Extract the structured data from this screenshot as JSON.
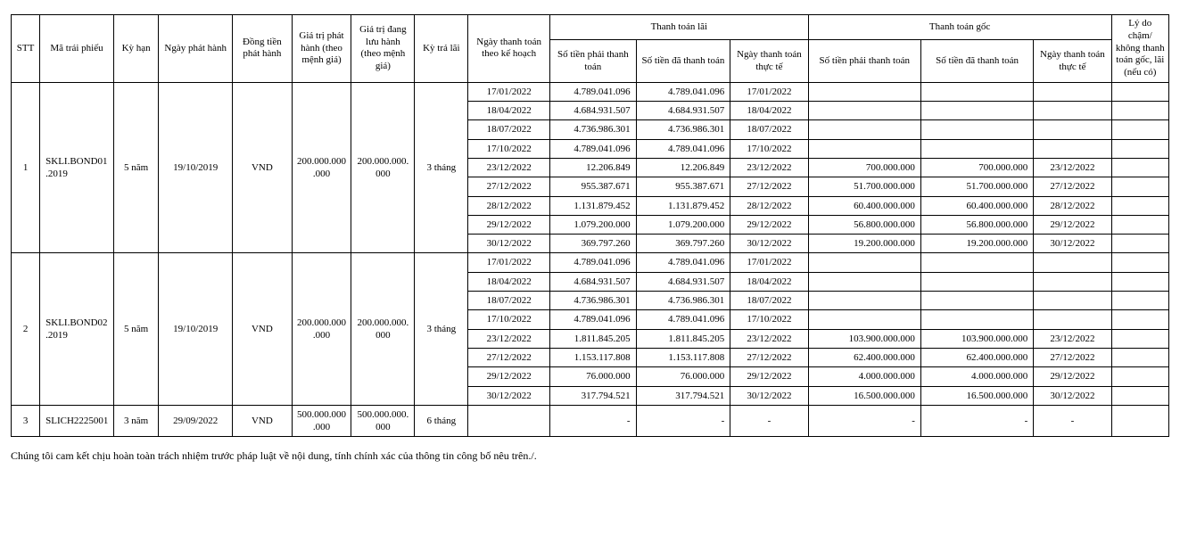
{
  "headers": {
    "stt": "STT",
    "code": "Mã trái phiếu",
    "term": "Kỳ hạn",
    "issue_date": "Ngày phát hành",
    "currency": "Đồng tiền phát hành",
    "face_issue": "Giá trị phát hành (theo mệnh giá)",
    "face_out": "Giá trị đang lưu hành (theo mệnh giá)",
    "int_period": "Kỳ trả lãi",
    "plan_date": "Ngày thanh toán theo kế hoạch",
    "interest_group": "Thanh toán lãi",
    "principal_group": "Thanh toán gốc",
    "amt_due": "Số tiền phải thanh toán",
    "amt_paid": "Số tiền đã thanh toán",
    "actual_date": "Ngày thanh toán thực tế",
    "reason": "Lý do chậm/ không thanh toán gốc, lãi (nếu có)"
  },
  "bonds": [
    {
      "stt": "1",
      "code": "SKLI.BOND01.2019",
      "term": "5 năm",
      "issue_date": "19/10/2019",
      "currency": "VND",
      "face_issue": "200.000.000.000",
      "face_out": "200.000.000.000",
      "int_period": "3 tháng",
      "rows": [
        {
          "plan": "17/01/2022",
          "i_due": "4.789.041.096",
          "i_paid": "4.789.041.096",
          "i_act": "17/01/2022",
          "p_due": "",
          "p_paid": "",
          "p_act": "",
          "reason": ""
        },
        {
          "plan": "18/04/2022",
          "i_due": "4.684.931.507",
          "i_paid": "4.684.931.507",
          "i_act": "18/04/2022",
          "p_due": "",
          "p_paid": "",
          "p_act": "",
          "reason": ""
        },
        {
          "plan": "18/07/2022",
          "i_due": "4.736.986.301",
          "i_paid": "4.736.986.301",
          "i_act": "18/07/2022",
          "p_due": "",
          "p_paid": "",
          "p_act": "",
          "reason": ""
        },
        {
          "plan": "17/10/2022",
          "i_due": "4.789.041.096",
          "i_paid": "4.789.041.096",
          "i_act": "17/10/2022",
          "p_due": "",
          "p_paid": "",
          "p_act": "",
          "reason": ""
        },
        {
          "plan": "23/12/2022",
          "i_due": "12.206.849",
          "i_paid": "12.206.849",
          "i_act": "23/12/2022",
          "p_due": "700.000.000",
          "p_paid": "700.000.000",
          "p_act": "23/12/2022",
          "reason": ""
        },
        {
          "plan": "27/12/2022",
          "i_due": "955.387.671",
          "i_paid": "955.387.671",
          "i_act": "27/12/2022",
          "p_due": "51.700.000.000",
          "p_paid": "51.700.000.000",
          "p_act": "27/12/2022",
          "reason": ""
        },
        {
          "plan": "28/12/2022",
          "i_due": "1.131.879.452",
          "i_paid": "1.131.879.452",
          "i_act": "28/12/2022",
          "p_due": "60.400.000.000",
          "p_paid": "60.400.000.000",
          "p_act": "28/12/2022",
          "reason": ""
        },
        {
          "plan": "29/12/2022",
          "i_due": "1.079.200.000",
          "i_paid": "1.079.200.000",
          "i_act": "29/12/2022",
          "p_due": "56.800.000.000",
          "p_paid": "56.800.000.000",
          "p_act": "29/12/2022",
          "reason": ""
        },
        {
          "plan": "30/12/2022",
          "i_due": "369.797.260",
          "i_paid": "369.797.260",
          "i_act": "30/12/2022",
          "p_due": "19.200.000.000",
          "p_paid": "19.200.000.000",
          "p_act": "30/12/2022",
          "reason": ""
        }
      ]
    },
    {
      "stt": "2",
      "code": "SKLI.BOND02.2019",
      "term": "5 năm",
      "issue_date": "19/10/2019",
      "currency": "VND",
      "face_issue": "200.000.000.000",
      "face_out": "200.000.000.000",
      "int_period": "3 tháng",
      "rows": [
        {
          "plan": "17/01/2022",
          "i_due": "4.789.041.096",
          "i_paid": "4.789.041.096",
          "i_act": "17/01/2022",
          "p_due": "",
          "p_paid": "",
          "p_act": "",
          "reason": ""
        },
        {
          "plan": "18/04/2022",
          "i_due": "4.684.931.507",
          "i_paid": "4.684.931.507",
          "i_act": "18/04/2022",
          "p_due": "",
          "p_paid": "",
          "p_act": "",
          "reason": ""
        },
        {
          "plan": "18/07/2022",
          "i_due": "4.736.986.301",
          "i_paid": "4.736.986.301",
          "i_act": "18/07/2022",
          "p_due": "",
          "p_paid": "",
          "p_act": "",
          "reason": ""
        },
        {
          "plan": "17/10/2022",
          "i_due": "4.789.041.096",
          "i_paid": "4.789.041.096",
          "i_act": "17/10/2022",
          "p_due": "",
          "p_paid": "",
          "p_act": "",
          "reason": ""
        },
        {
          "plan": "23/12/2022",
          "i_due": "1.811.845.205",
          "i_paid": "1.811.845.205",
          "i_act": "23/12/2022",
          "p_due": "103.900.000.000",
          "p_paid": "103.900.000.000",
          "p_act": "23/12/2022",
          "reason": ""
        },
        {
          "plan": "27/12/2022",
          "i_due": "1.153.117.808",
          "i_paid": "1.153.117.808",
          "i_act": "27/12/2022",
          "p_due": "62.400.000.000",
          "p_paid": "62.400.000.000",
          "p_act": "27/12/2022",
          "reason": ""
        },
        {
          "plan": "29/12/2022",
          "i_due": "76.000.000",
          "i_paid": "76.000.000",
          "i_act": "29/12/2022",
          "p_due": "4.000.000.000",
          "p_paid": "4.000.000.000",
          "p_act": "29/12/2022",
          "reason": ""
        },
        {
          "plan": "30/12/2022",
          "i_due": "317.794.521",
          "i_paid": "317.794.521",
          "i_act": "30/12/2022",
          "p_due": "16.500.000.000",
          "p_paid": "16.500.000.000",
          "p_act": "30/12/2022",
          "reason": ""
        }
      ]
    },
    {
      "stt": "3",
      "code": "SLICH2225001",
      "term": "3 năm",
      "issue_date": "29/09/2022",
      "currency": "VND",
      "face_issue": "500.000.000.000",
      "face_out": "500.000.000.000",
      "int_period": "6 tháng",
      "rows": [
        {
          "plan": "",
          "i_due": "-",
          "i_paid": "-",
          "i_act": "-",
          "p_due": "-",
          "p_paid": "-",
          "p_act": "-",
          "reason": ""
        }
      ]
    }
  ],
  "footer": "Chúng tôi cam kết chịu hoàn toàn trách nhiệm trước pháp luật về nội dung, tính chính xác của thông tin công bố nêu trên./."
}
